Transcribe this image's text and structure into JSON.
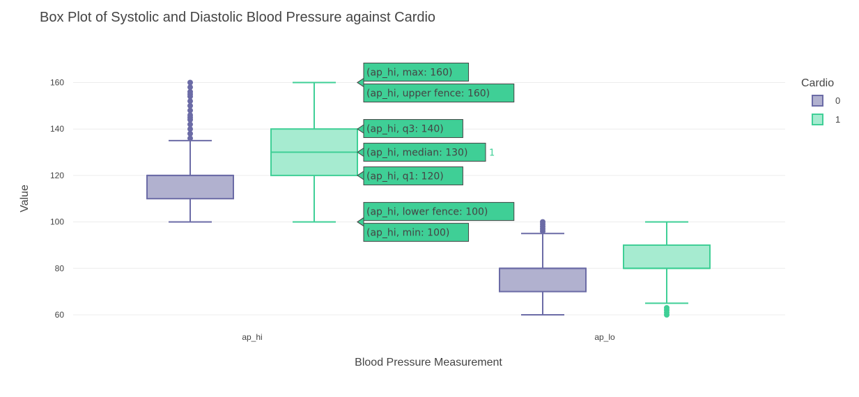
{
  "chart_data": {
    "type": "box",
    "title": "Box Plot of Systolic and Diastolic Blood Pressure against Cardio",
    "xlabel": "Blood Pressure Measurement",
    "ylabel": "Value",
    "categories": [
      "ap_hi",
      "ap_lo"
    ],
    "ylim": [
      56,
      171
    ],
    "yticks": [
      60,
      80,
      100,
      120,
      140,
      160
    ],
    "grid": true,
    "legend": {
      "title": "Cardio",
      "placement": "top-right"
    },
    "series": [
      {
        "name": "0",
        "color": "#6b6ba6",
        "fill": "#b1b1cf",
        "boxes": [
          {
            "category": "ap_hi",
            "min": 100,
            "q1": 110,
            "median": 120,
            "q3": 120,
            "upper_fence": 135,
            "max": 160,
            "outliers": [
              136,
              138,
              140,
              142,
              144,
              145,
              146,
              148,
              150,
              152,
              154,
              155,
              156,
              158,
              160
            ]
          },
          {
            "category": "ap_lo",
            "min": 60,
            "q1": 70,
            "median": 80,
            "q3": 80,
            "upper_fence": 95,
            "max": 100,
            "outliers": [
              96,
              97,
              98,
              99,
              100
            ]
          }
        ]
      },
      {
        "name": "1",
        "color": "#3fcf96",
        "fill": "#a6ebd0",
        "boxes": [
          {
            "category": "ap_hi",
            "min": 100,
            "lower_fence": 100,
            "q1": 120,
            "median": 130,
            "q3": 140,
            "upper_fence": 160,
            "max": 160,
            "outliers": []
          },
          {
            "category": "ap_lo",
            "min": 60,
            "lower_fence": 65,
            "q1": 80,
            "median": 80,
            "q3": 90,
            "upper_fence": 100,
            "max": 100,
            "outliers": [
              60,
              61,
              62,
              63
            ]
          }
        ]
      }
    ],
    "hover": {
      "labels": [
        {
          "text": "(ap_hi, max: 160)",
          "value": 160,
          "group": "top"
        },
        {
          "text": "(ap_hi, upper fence: 160)",
          "value": 160,
          "group": "top"
        },
        {
          "text": "(ap_hi, q3: 140)",
          "value": 140,
          "group": "mid"
        },
        {
          "text": "(ap_hi, median: 130)",
          "value": 130,
          "group": "mid"
        },
        {
          "text": "(ap_hi, q1: 120)",
          "value": 120,
          "group": "mid"
        },
        {
          "text": "(ap_hi, lower fence: 100)",
          "value": 100,
          "group": "bottom"
        },
        {
          "text": "(ap_hi, min: 100)",
          "value": 100,
          "group": "bottom"
        }
      ],
      "trace_name": "1",
      "color": "#3fcf96"
    }
  }
}
